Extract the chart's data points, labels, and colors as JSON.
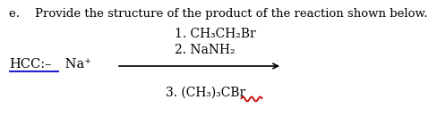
{
  "background_color": "#ffffff",
  "title_text": "e.    Provide the structure of the product of the reaction shown below.",
  "title_fontsize": 9.5,
  "reactant_fontsize": 10.5,
  "label_fontsize": 10.0,
  "arrow_color": "#000000",
  "underline_color": "#2222cc",
  "wavy_color": "#cc0000",
  "label1": "1. CH₃CH₂Br",
  "label2": "2. NaNH₂",
  "label3": "3. (CH₃)₃CBr"
}
